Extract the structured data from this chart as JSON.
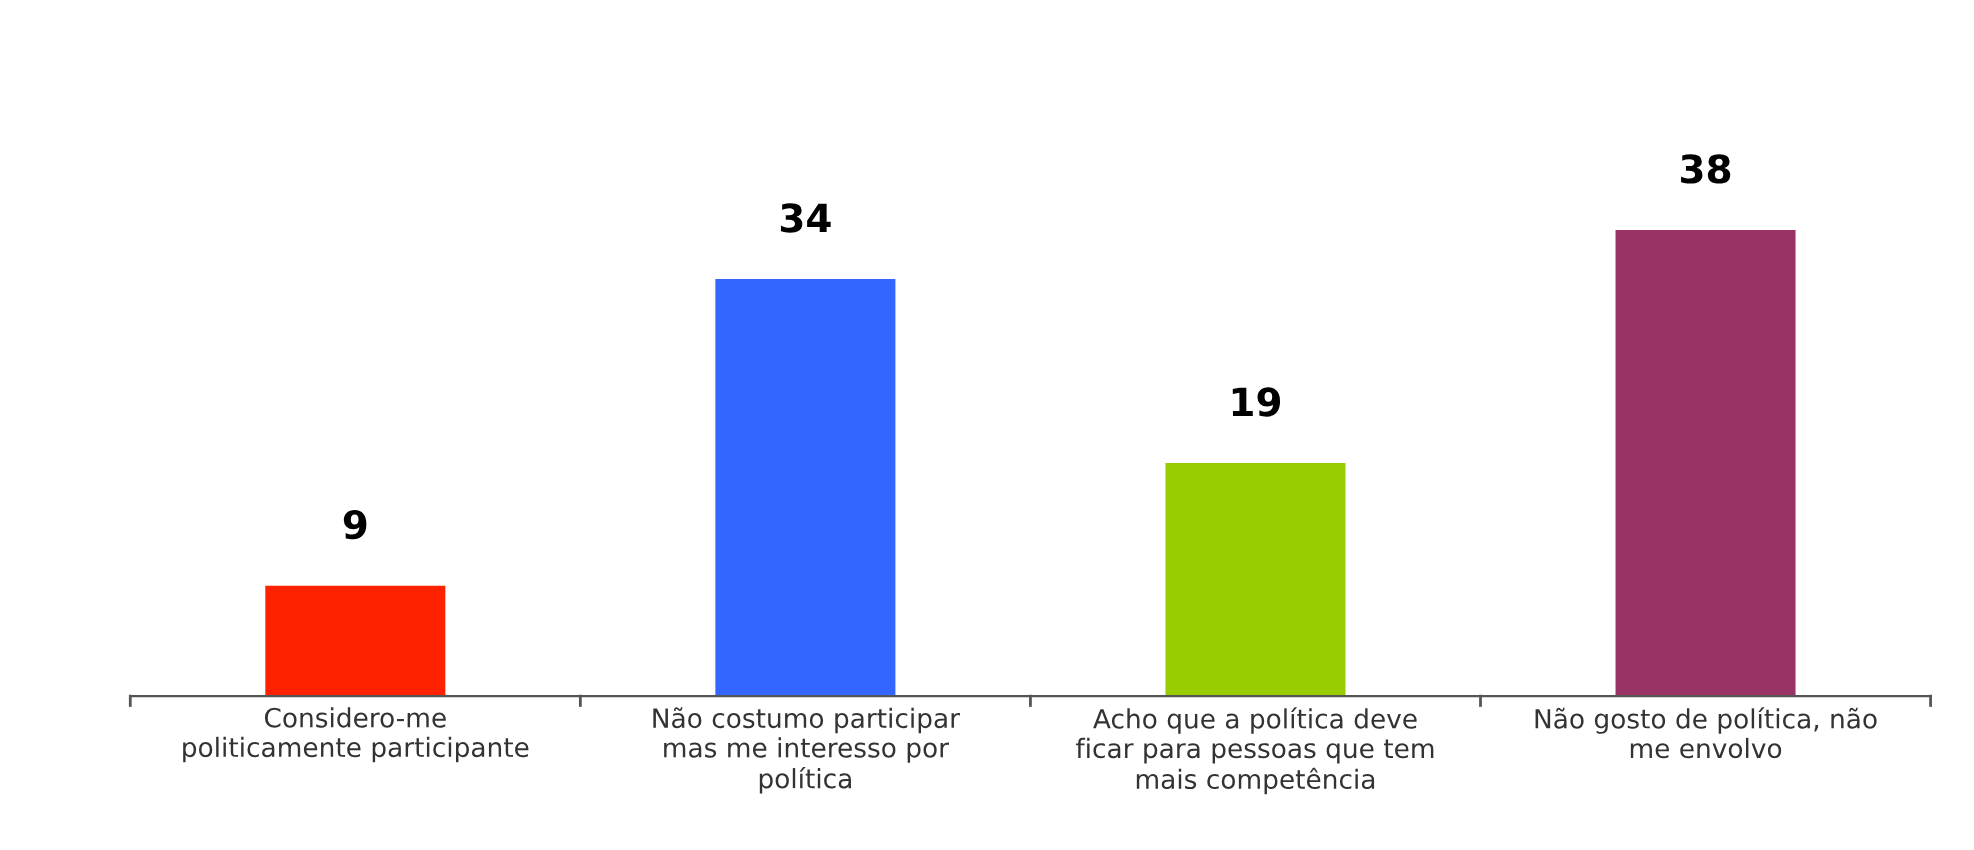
{
  "chart_data": {
    "type": "bar",
    "categories": [
      "Considero-me\npoliticamente participante",
      "Não costumo participar\nmas me interesso por\npolítica",
      "Acho que a política deve\nficar para pessoas que tem\nmais competência",
      "Não gosto de política, não\nme envolvo"
    ],
    "values": [
      9,
      34,
      19,
      38
    ],
    "colors": [
      "#ff2200",
      "#3366ff",
      "#99cc00",
      "#993366"
    ],
    "data_labels": true,
    "grid": false,
    "legend": false
  }
}
